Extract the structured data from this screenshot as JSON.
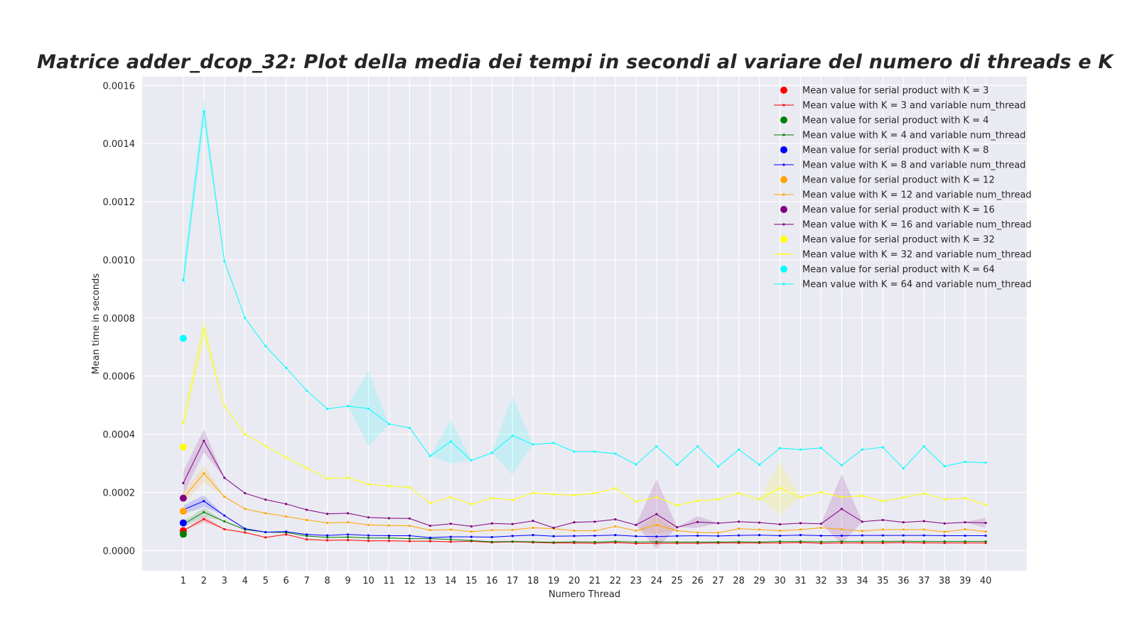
{
  "chart_data": {
    "type": "line",
    "title": "Matrice adder_dcop_32: Plot della media dei tempi in secondi al variare del numero di threads e K",
    "xlabel": "Numero Thread",
    "ylabel": "Mean time in seconds",
    "x": [
      1,
      2,
      3,
      4,
      5,
      6,
      7,
      8,
      9,
      10,
      11,
      12,
      13,
      14,
      15,
      16,
      17,
      18,
      19,
      20,
      21,
      22,
      23,
      24,
      25,
      26,
      27,
      28,
      29,
      30,
      31,
      32,
      33,
      34,
      35,
      36,
      37,
      38,
      39,
      40
    ],
    "x_ticks": [
      "1",
      "2",
      "3",
      "4",
      "5",
      "6",
      "7",
      "8",
      "9",
      "10",
      "11",
      "12",
      "13",
      "14",
      "15",
      "16",
      "17",
      "18",
      "19",
      "20",
      "21",
      "22",
      "23",
      "24",
      "25",
      "26",
      "27",
      "28",
      "29",
      "30",
      "31",
      "32",
      "33",
      "34",
      "35",
      "36",
      "37",
      "38",
      "39",
      "40"
    ],
    "xlim": [
      -1,
      42
    ],
    "ylim": [
      -7e-05,
      0.00163
    ],
    "y_ticks": [
      "0.0000",
      "0.0002",
      "0.0004",
      "0.0006",
      "0.0008",
      "0.0010",
      "0.0012",
      "0.0014",
      "0.0016"
    ],
    "y_tick_values": [
      0,
      0.0002,
      0.0004,
      0.0006,
      0.0008,
      0.001,
      0.0012,
      0.0014,
      0.0016
    ],
    "grid": true,
    "legend_position": "top-right",
    "serial_points": [
      {
        "label": "Mean value for serial product with K = 3",
        "color": "#ff0000",
        "x": 1,
        "y": 6.8e-05
      },
      {
        "label": "Mean value for serial product with K = 4",
        "color": "#008000",
        "x": 1,
        "y": 5.6e-05
      },
      {
        "label": "Mean value for serial product with K = 8",
        "color": "#0000ff",
        "x": 1,
        "y": 9.5e-05
      },
      {
        "label": "Mean value for serial product with K = 12",
        "color": "#ffa500",
        "x": 1,
        "y": 0.000135
      },
      {
        "label": "Mean value for serial product with K = 16",
        "color": "#800080",
        "x": 1,
        "y": 0.00018
      },
      {
        "label": "Mean value for serial product with K = 32",
        "color": "#ffff00",
        "x": 1,
        "y": 0.000356
      },
      {
        "label": "Mean value for serial product with K = 64",
        "color": "#00ffff",
        "x": 1,
        "y": 0.00073
      }
    ],
    "series": [
      {
        "name": "Mean value with K = 3 and variable num_thread",
        "color": "#ff0000",
        "values": [
          6.8e-05,
          0.000108,
          7.3e-05,
          6.2e-05,
          4.5e-05,
          5.5e-05,
          3.8e-05,
          3.5e-05,
          3.6e-05,
          3.3e-05,
          3.3e-05,
          3.2e-05,
          3.2e-05,
          3e-05,
          3.2e-05,
          2.8e-05,
          3e-05,
          2.8e-05,
          2.6e-05,
          2.6e-05,
          2.5e-05,
          2.7e-05,
          2.4e-05,
          2.5e-05,
          2.5e-05,
          2.5e-05,
          2.6e-05,
          2.6e-05,
          2.6e-05,
          2.6e-05,
          2.7e-05,
          2.5e-05,
          2.6e-05,
          2.6e-05,
          2.6e-05,
          2.7e-05,
          2.6e-05,
          2.6e-05,
          2.6e-05,
          2.6e-05
        ],
        "band": [
          0,
          1.2e-05,
          0,
          0,
          0,
          0,
          0,
          0,
          0,
          0,
          0,
          0,
          0,
          0,
          0,
          0,
          0,
          0,
          0,
          0,
          0,
          0,
          0,
          0,
          0,
          0,
          0,
          0,
          0,
          0,
          0,
          0,
          0,
          0,
          0,
          0,
          0,
          0,
          0,
          0
        ]
      },
      {
        "name": "Mean value with K = 4 and variable num_thread",
        "color": "#008000",
        "values": [
          9e-05,
          0.000132,
          0.0001,
          7.2e-05,
          6.3e-05,
          6.2e-05,
          5e-05,
          4.5e-05,
          4.6e-05,
          4.3e-05,
          4.3e-05,
          4.1e-05,
          4.1e-05,
          3.8e-05,
          3.4e-05,
          3e-05,
          3.1e-05,
          3e-05,
          2.8e-05,
          3e-05,
          2.9e-05,
          3.1e-05,
          2.9e-05,
          3e-05,
          2.9e-05,
          2.9e-05,
          2.9e-05,
          3e-05,
          2.9e-05,
          3.1e-05,
          3.1e-05,
          3e-05,
          3.1e-05,
          3.1e-05,
          3.1e-05,
          3.2e-05,
          3.1e-05,
          3.1e-05,
          3.1e-05,
          3.1e-05
        ],
        "band": [
          1e-05,
          1.5e-05,
          0,
          0,
          0,
          0,
          0,
          0,
          0,
          0,
          0,
          0,
          0,
          0,
          0,
          0,
          0,
          0,
          0,
          0,
          0,
          0,
          0,
          0,
          0,
          0,
          0,
          0,
          0,
          0,
          0,
          0,
          0,
          0,
          0,
          0,
          0,
          0,
          0,
          0
        ]
      },
      {
        "name": "Mean value with K = 8 and variable num_thread",
        "color": "#0000ff",
        "values": [
          0.00014,
          0.00017,
          0.00012,
          7.5e-05,
          6.3e-05,
          6.5e-05,
          5.5e-05,
          5.2e-05,
          5.5e-05,
          5.2e-05,
          5.1e-05,
          5.1e-05,
          4.4e-05,
          4.7e-05,
          4.7e-05,
          4.6e-05,
          5e-05,
          5.3e-05,
          4.9e-05,
          5e-05,
          5.1e-05,
          5.3e-05,
          4.9e-05,
          4.8e-05,
          5e-05,
          5.1e-05,
          5e-05,
          5.2e-05,
          5.3e-05,
          5.1e-05,
          5.3e-05,
          5.1e-05,
          5.1e-05,
          5.2e-05,
          5.2e-05,
          5.2e-05,
          5.2e-05,
          5.1e-05,
          5.1e-05,
          5.1e-05
        ],
        "band": [
          1.5e-05,
          2e-05,
          0,
          0,
          0,
          0,
          0,
          0,
          0,
          0,
          0,
          0,
          0,
          0,
          0,
          0,
          0,
          0,
          0,
          0,
          0,
          0,
          0,
          0,
          0,
          0,
          0,
          0,
          0,
          0,
          0,
          0,
          0,
          0,
          0,
          0,
          0,
          0,
          0,
          0
        ]
      },
      {
        "name": "Mean value with K = 12 and variable num_thread",
        "color": "#ffa500",
        "values": [
          0.00018,
          0.000265,
          0.000185,
          0.000143,
          0.000128,
          0.000117,
          0.000105,
          9.5e-05,
          9.7e-05,
          8.8e-05,
          8.6e-05,
          8.5e-05,
          7e-05,
          7.2e-05,
          6.5e-05,
          7e-05,
          7.1e-05,
          7.8e-05,
          7.5e-05,
          6.8e-05,
          6.8e-05,
          8.3e-05,
          6.8e-05,
          8.8e-05,
          6.8e-05,
          6.2e-05,
          6.1e-05,
          7.5e-05,
          7.2e-05,
          6.8e-05,
          7.2e-05,
          7.8e-05,
          7.3e-05,
          6.7e-05,
          7.2e-05,
          7.2e-05,
          7.2e-05,
          6.4e-05,
          7.3e-05,
          6.5e-05
        ],
        "band": [
          2e-05,
          3e-05,
          0,
          0,
          0,
          0,
          0,
          0,
          0,
          0,
          0,
          0,
          0,
          0,
          0,
          0,
          0,
          0,
          0,
          0,
          0,
          0,
          0,
          3e-05,
          0,
          0,
          0,
          0,
          0,
          0,
          0,
          0,
          0,
          0,
          0,
          0,
          0,
          0,
          0,
          0
        ]
      },
      {
        "name": "Mean value with K = 16 and variable num_thread",
        "color": "#800080",
        "values": [
          0.000232,
          0.000377,
          0.00025,
          0.000197,
          0.000175,
          0.00016,
          0.00014,
          0.000126,
          0.000128,
          0.000114,
          0.000111,
          0.00011,
          8.5e-05,
          9.2e-05,
          8.3e-05,
          9.3e-05,
          9.1e-05,
          0.000102,
          7.8e-05,
          9.7e-05,
          9.9e-05,
          0.000107,
          8.8e-05,
          0.000125,
          8e-05,
          9.8e-05,
          9.4e-05,
          9.9e-05,
          9.6e-05,
          9e-05,
          9.4e-05,
          9.2e-05,
          0.000143,
          9.9e-05,
          0.000105,
          9.7e-05,
          0.000101,
          9.3e-05,
          9.7e-05,
          9.5e-05
        ],
        "band": [
          4e-05,
          4e-05,
          0,
          0,
          0,
          0,
          0,
          0,
          0,
          0,
          0,
          0,
          0,
          0,
          0,
          0,
          0,
          0,
          0,
          0,
          0,
          0,
          0,
          0.00012,
          0,
          2e-05,
          0,
          0,
          0,
          0,
          0,
          0,
          0.00012,
          0,
          0,
          0,
          0,
          0,
          0,
          1.8e-05
        ]
      },
      {
        "name": "Mean value with K = 32 and variable num_thread",
        "color": "#ffff00",
        "values": [
          0.00044,
          0.00076,
          0.000497,
          0.0004,
          0.00036,
          0.00032,
          0.000283,
          0.000248,
          0.00025,
          0.000228,
          0.000222,
          0.000217,
          0.000163,
          0.000183,
          0.000159,
          0.00018,
          0.000174,
          0.000198,
          0.000193,
          0.00019,
          0.000197,
          0.000214,
          0.000168,
          0.000183,
          0.000155,
          0.000171,
          0.000176,
          0.000197,
          0.000176,
          0.000215,
          0.000183,
          0.0002,
          0.000184,
          0.000188,
          0.00017,
          0.000182,
          0.000196,
          0.000176,
          0.00018,
          0.000157
        ],
        "band": [
          3e-05,
          4e-05,
          0,
          0,
          0,
          0,
          0,
          0,
          0,
          0,
          0,
          0,
          0,
          0,
          0,
          0,
          0,
          0,
          0,
          0,
          0,
          0,
          0,
          0,
          0,
          0,
          0,
          0,
          0,
          9e-05,
          0,
          0,
          0,
          0,
          0,
          0,
          0,
          0,
          0,
          0
        ]
      },
      {
        "name": "Mean value with K = 64 and variable num_thread",
        "color": "#00ffff",
        "values": [
          0.00093,
          0.00151,
          0.000995,
          0.0008,
          0.000703,
          0.000628,
          0.00055,
          0.000487,
          0.000497,
          0.000488,
          0.000435,
          0.000422,
          0.000325,
          0.000375,
          0.00031,
          0.000336,
          0.000395,
          0.000365,
          0.00037,
          0.00034,
          0.00034,
          0.000333,
          0.000296,
          0.000358,
          0.000295,
          0.000358,
          0.000289,
          0.000347,
          0.000295,
          0.000352,
          0.000347,
          0.000353,
          0.000293,
          0.000347,
          0.000355,
          0.000282,
          0.000358,
          0.00029,
          0.000305,
          0.000302
        ],
        "band": [
          5e-05,
          5e-05,
          0,
          0,
          0,
          0,
          0,
          0,
          0,
          0.00013,
          0,
          0,
          0,
          7.5e-05,
          0,
          0,
          0.000135,
          0,
          0,
          0,
          0,
          0,
          0,
          0,
          0,
          0,
          0,
          0,
          0,
          0,
          0,
          0,
          0,
          0,
          0,
          0,
          0,
          0,
          0,
          0
        ]
      }
    ],
    "legend": [
      {
        "label": "Mean value for serial product with K = 3",
        "color": "#ff0000",
        "kind": "dot"
      },
      {
        "label": "Mean value with K = 3 and variable num_thread",
        "color": "#ff0000",
        "kind": "line"
      },
      {
        "label": "Mean value for serial product with K = 4",
        "color": "#008000",
        "kind": "dot"
      },
      {
        "label": "Mean value with K = 4 and variable num_thread",
        "color": "#008000",
        "kind": "line"
      },
      {
        "label": "Mean value for serial product with K = 8",
        "color": "#0000ff",
        "kind": "dot"
      },
      {
        "label": "Mean value with K = 8 and variable num_thread",
        "color": "#0000ff",
        "kind": "line"
      },
      {
        "label": "Mean value for serial product with K = 12",
        "color": "#ffa500",
        "kind": "dot"
      },
      {
        "label": "Mean value with K = 12 and variable num_thread",
        "color": "#ffa500",
        "kind": "line"
      },
      {
        "label": "Mean value for serial product with K = 16",
        "color": "#800080",
        "kind": "dot"
      },
      {
        "label": "Mean value with K = 16 and variable num_thread",
        "color": "#800080",
        "kind": "line"
      },
      {
        "label": "Mean value for serial product with K = 32",
        "color": "#ffff00",
        "kind": "dot"
      },
      {
        "label": "Mean value with K = 32 and variable num_thread",
        "color": "#ffff00",
        "kind": "line"
      },
      {
        "label": "Mean value for serial product with K = 64",
        "color": "#00ffff",
        "kind": "dot"
      },
      {
        "label": "Mean value with K = 64 and variable num_thread",
        "color": "#00ffff",
        "kind": "line"
      }
    ]
  }
}
